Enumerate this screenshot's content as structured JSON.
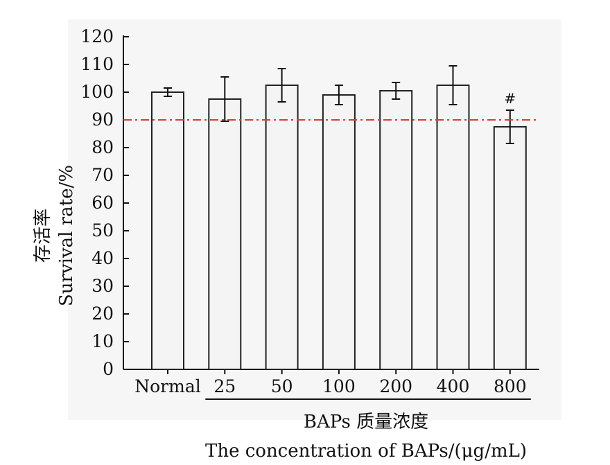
{
  "chart_data": {
    "type": "bar",
    "categories": [
      "Normal",
      "25",
      "50",
      "100",
      "200",
      "400",
      "800"
    ],
    "values": [
      100,
      97.5,
      102.5,
      99,
      100.5,
      102.5,
      87.5
    ],
    "errors": [
      1.5,
      8,
      6,
      3.5,
      3,
      7,
      6
    ],
    "annotations": [
      {
        "category": "800",
        "text": "#"
      }
    ],
    "reference_line": {
      "y": 90,
      "color": "#e03a2e",
      "style": "dash-dot"
    },
    "ylim": [
      0,
      120
    ],
    "yticks": [
      0,
      10,
      20,
      30,
      40,
      50,
      60,
      70,
      80,
      90,
      100,
      110,
      120
    ],
    "ylabel_cn": "存活率",
    "ylabel_en": "Survival rate/%",
    "group_label_cn": "BAPs 质量浓度",
    "xlabel_en": "The concentration of BAPs/(μg/mL)",
    "bar_color": "#f4f4f4",
    "bar_edge_color": "#222222"
  }
}
